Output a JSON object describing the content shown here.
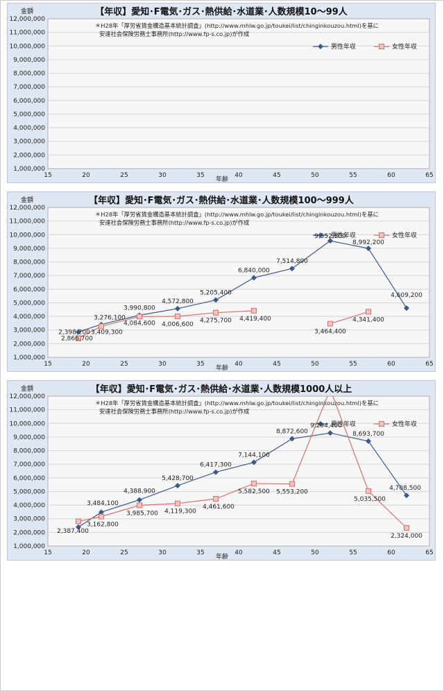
{
  "y_unit_label": "金額",
  "x_axis_label": "年齢",
  "note_line1": "＊H28年「厚労省賃金構造基本統計調査」(http://www.mhlw.go.jp/toukei/list/chinginkouzou.html)を基に",
  "note_line2": "安達社会保険労務士事務所(http://www.fp-s.co.jp)が作成",
  "legend": {
    "male": "男性年収",
    "female": "女性年収"
  },
  "colors": {
    "male": "#3b5a8a",
    "female": "#d9706a",
    "plot_bg": "#f7f7f7",
    "grid": "#d6d6d6",
    "panel_bg": "#dfe7f2"
  },
  "y_tick_labels": [
    "1,000,000",
    "2,000,000",
    "3,000,000",
    "4,000,000",
    "5,000,000",
    "6,000,000",
    "7,000,000",
    "8,000,000",
    "9,000,000",
    "10,000,000",
    "11,000,000",
    "12,000,000"
  ],
  "x_tick_labels": [
    "15",
    "20",
    "25",
    "30",
    "35",
    "40",
    "45",
    "50",
    "55",
    "60",
    "65"
  ],
  "chart_data": [
    {
      "type": "line",
      "title": "【年収】愛知･F電気･ガス･熱供給･水道業･人数規模10～99人",
      "xlabel": "年齢",
      "ylabel": "金額",
      "xlim": [
        15,
        65
      ],
      "ylim": [
        1000000,
        12000000
      ],
      "grid": true,
      "legend": "top-right",
      "series": [
        {
          "name": "男性年収",
          "x": [],
          "values": [],
          "labels": []
        },
        {
          "name": "女性年収",
          "x": [],
          "values": [],
          "labels": []
        }
      ]
    },
    {
      "type": "line",
      "title": "【年収】愛知･F電気･ガス･熱供給･水道業･人数規模100～999人",
      "xlabel": "年齢",
      "ylabel": "金額",
      "xlim": [
        15,
        65
      ],
      "ylim": [
        1000000,
        12000000
      ],
      "grid": true,
      "legend": "top-right",
      "series": [
        {
          "name": "男性年収",
          "x": [
            19,
            22,
            27,
            32,
            37,
            42,
            47,
            52,
            57,
            62
          ],
          "values": [
            2866700,
            3409300,
            4084600,
            4572800,
            5205400,
            6840000,
            7514800,
            9552800,
            8992200,
            4609200
          ],
          "labels": [
            "2,866,700",
            "3,409,300",
            "4,084,600",
            "4,572,800",
            "5,205,400",
            "6,840,000",
            "7,514,800",
            "9,552,800",
            "8,992,200",
            "4,609,200"
          ]
        },
        {
          "name": "女性年収",
          "x": [
            19,
            22,
            27,
            32,
            37,
            42,
            52,
            57
          ],
          "values": [
            2398200,
            3276100,
            3990800,
            4006600,
            4275700,
            4419400,
            3464400,
            4341400
          ],
          "labels": [
            "2,398,200",
            "3,276,100",
            "3,990,800",
            "4,006,600",
            "4,275,700",
            "4,419,400",
            "3,464,400",
            "4,341,400"
          ],
          "segments": [
            [
              0,
              5
            ],
            [
              6,
              7
            ]
          ]
        }
      ]
    },
    {
      "type": "line",
      "title": "【年収】愛知･F電気･ガス･熱供給･水道業･人数規模1000人以上",
      "xlabel": "年齢",
      "ylabel": "金額",
      "xlim": [
        15,
        65
      ],
      "ylim": [
        1000000,
        12000000
      ],
      "grid": true,
      "legend": "top-right",
      "series": [
        {
          "name": "男性年収",
          "x": [
            19,
            22,
            27,
            32,
            37,
            42,
            47,
            52,
            57,
            62
          ],
          "values": [
            2387400,
            3484100,
            4388900,
            5428700,
            6417300,
            7144100,
            8872600,
            9294400,
            8693700,
            4708500
          ],
          "labels": [
            "2,387,400",
            "3,484,100",
            "4,388,900",
            "5,428,700",
            "6,417,300",
            "7,144,100",
            "8,872,600",
            "9,294,400",
            "8,693,700",
            "4,708,500"
          ]
        },
        {
          "name": "女性年収",
          "x": [
            19,
            22,
            27,
            32,
            37,
            42,
            47,
            52,
            57,
            62
          ],
          "values": [
            2810000,
            3162800,
            3985700,
            4119300,
            4461600,
            5582500,
            5553200,
            12500000,
            5035500,
            2324000
          ],
          "labels": [
            "",
            "3,162,800",
            "3,985,700",
            "4,119,300",
            "4,461,600",
            "5,582,500",
            "5,553,200",
            "",
            "5,035,500",
            "2,324,000"
          ]
        }
      ]
    }
  ]
}
